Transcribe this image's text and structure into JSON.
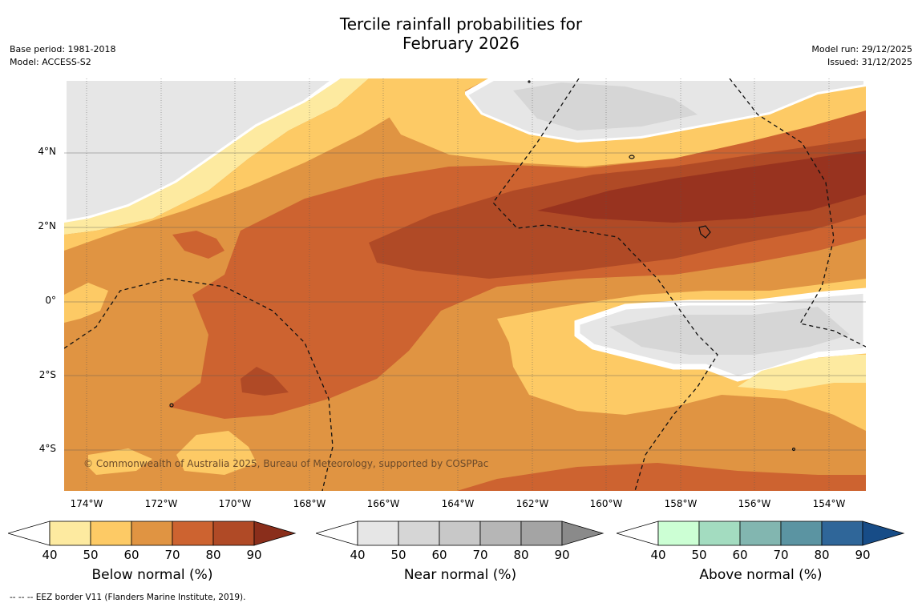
{
  "title_line1": "Tercile rainfall probabilities for",
  "title_line2": "February 2026",
  "base_period": "Base period: 1981-2018",
  "model": "Model: ACCESS-S2",
  "model_run": "Model run: 29/12/2025",
  "issued": "Issued: 31/12/2025",
  "lat_labels": [
    "4°N",
    "2°N",
    "0°",
    "2°S",
    "4°S"
  ],
  "lon_labels": [
    "174°W",
    "172°W",
    "170°W",
    "168°W",
    "166°W",
    "164°W",
    "162°W",
    "160°W",
    "158°W",
    "156°W",
    "154°W"
  ],
  "copyright": "© Commonwealth of Australia 2025, Bureau of Meteorology, supported by COSPPac",
  "footer": "--  --  -- EEZ border V11 (Flanders Marine Institute, 2019).",
  "colorbars": [
    {
      "title": "Below normal (%)",
      "ticks": [
        "40",
        "50",
        "60",
        "70",
        "80",
        "90"
      ],
      "colors": [
        "#ffffff",
        "#fdeaa0",
        "#fdca65",
        "#e09442",
        "#cd6330",
        "#b04a26",
        "#8a2e1b"
      ]
    },
    {
      "title": "Near normal (%)",
      "ticks": [
        "40",
        "50",
        "60",
        "70",
        "80",
        "90"
      ],
      "colors": [
        "#ffffff",
        "#e6e6e6",
        "#d6d6d6",
        "#c8c8c8",
        "#b6b6b6",
        "#a4a4a4",
        "#8a8a8a"
      ]
    },
    {
      "title": "Above normal (%)",
      "ticks": [
        "40",
        "50",
        "60",
        "70",
        "80",
        "90"
      ],
      "colors": [
        "#ffffff",
        "#ccffd4",
        "#a3dcc0",
        "#82b6b0",
        "#5b94a2",
        "#2f6699",
        "#174c87"
      ]
    }
  ],
  "colors": {
    "near50": "#e6e6e6",
    "near60": "#d6d6d6",
    "below50": "#fdeaa0",
    "below60": "#fdca65",
    "below70": "#e09442",
    "below80": "#cd6330",
    "below90": "#b04a26",
    "below_max": "#98331f"
  }
}
